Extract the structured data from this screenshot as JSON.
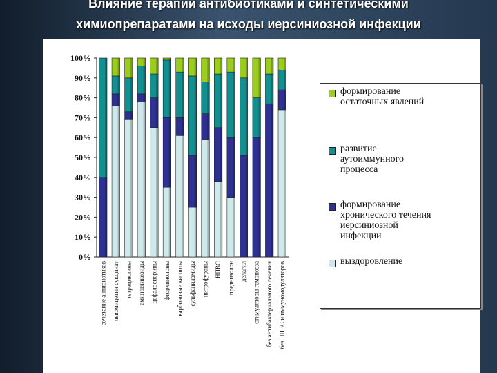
{
  "slide": {
    "title_line1": "Влияние терапии антибиотиками и синтетическими",
    "title_line2": "химиопрепаратами на исходы иерсиниозной инфекции"
  },
  "chart_data": {
    "type": "stacked-bar-100",
    "title": "",
    "xlabel": "",
    "ylabel": "",
    "ylim": [
      0,
      100
    ],
    "yticks": [
      "0%",
      "10%",
      "20%",
      "30%",
      "40%",
      "50%",
      "60%",
      "70%",
      "80%",
      "90%",
      "100%"
    ],
    "grid": false,
    "legend_position": "right",
    "categories": [
      "сочетание антибиотиков",
      "левомицетин сукцинат",
      "тетрациклины",
      "аминогликозиды",
      "цефалоспорины",
      "фторхинолоны",
      "карбоновые кислоты",
      "сульфаниламиды",
      "нитрофураны",
      "НПВС",
      "преднизолон",
      "делагил",
      "стимуляторы гемопоэза",
      "без антибактериального лечения",
      "без НПВС и иммуномодуляторов"
    ],
    "series": [
      {
        "name": "выздоровление",
        "color": "#cfe9eb",
        "values": [
          0,
          76,
          69,
          78,
          65,
          35,
          61,
          25,
          59,
          38,
          30,
          0,
          0,
          0,
          74
        ]
      },
      {
        "name": "формирование хронического течения иерсиниозной инфекции",
        "color": "#2e3192",
        "values": [
          40,
          6,
          4,
          4,
          15,
          35,
          9,
          26,
          13,
          27,
          30,
          51,
          60,
          77,
          10
        ]
      },
      {
        "name": "развитие аутоиммунного процесса",
        "color": "#148f90",
        "values": [
          60,
          9,
          17,
          14,
          12,
          29,
          23,
          40,
          16,
          27,
          33,
          39,
          20,
          15,
          10
        ]
      },
      {
        "name": "формирование остаточных явлений",
        "color": "#9acd1f",
        "values": [
          0,
          9,
          10,
          4,
          8,
          1,
          7,
          9,
          12,
          8,
          7,
          10,
          20,
          8,
          6
        ]
      }
    ],
    "legend": [
      "формирование\nостаточных явлений",
      "развитие\nаутоиммунного\nпроцесса",
      "формирование\nхронического течения\nиерсиниозной\nинфекции",
      "выздоровление"
    ]
  }
}
